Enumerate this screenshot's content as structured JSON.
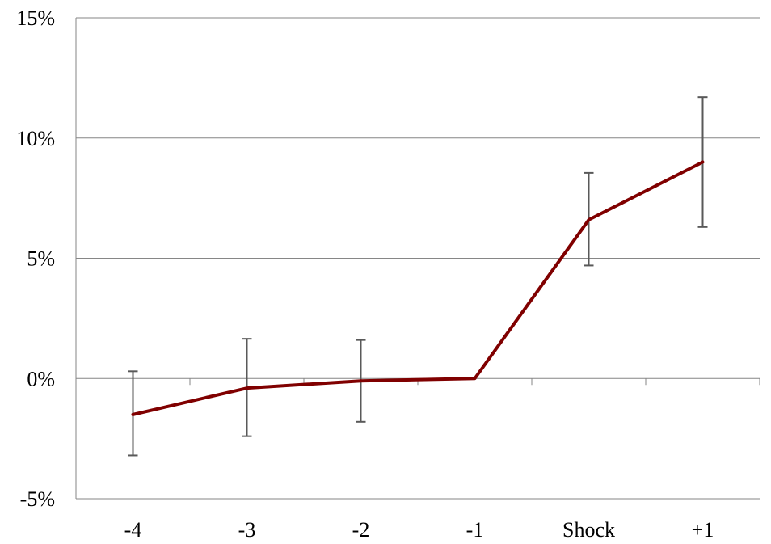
{
  "chart_data": {
    "type": "line",
    "categories": [
      "-4",
      "-3",
      "-2",
      "-1",
      "Shock",
      "+1"
    ],
    "series": [
      {
        "values": [
          -1.5,
          -0.4,
          -0.1,
          0.0,
          6.6,
          9.0
        ],
        "error_low": [
          -3.2,
          -2.4,
          -1.8,
          0.0,
          4.7,
          6.3
        ],
        "error_high": [
          0.3,
          1.65,
          1.6,
          0.0,
          8.55,
          11.7
        ],
        "color": "#800000"
      }
    ],
    "y_ticks": [
      15,
      10,
      5,
      0,
      -5
    ],
    "y_tick_labels": [
      "15%",
      "10%",
      "5%",
      "0%",
      "-5%"
    ],
    "ylim": [
      -5,
      15
    ],
    "grid": true,
    "legend": "none",
    "title": "",
    "xlabel": "",
    "ylabel": ""
  }
}
